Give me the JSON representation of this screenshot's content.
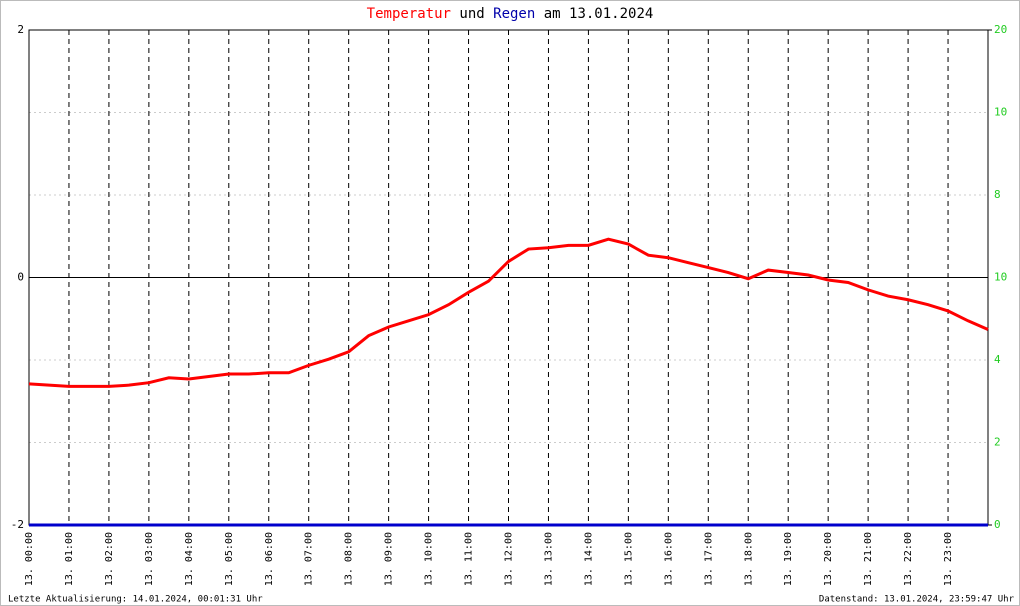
{
  "chart_data": {
    "type": "line",
    "title_middle": "und",
    "title_end": "am 13.01.2024",
    "footer_left": "Letzte Aktualisierung: 14.01.2024, 00:01:31 Uhr",
    "footer_right": "Datenstand: 13.01.2024, 23:59:47 Uhr",
    "x": [
      0,
      0.5,
      1,
      1.5,
      2,
      2.5,
      3,
      3.5,
      4,
      4.5,
      5,
      5.5,
      6,
      6.5,
      7,
      7.5,
      8,
      8.5,
      9,
      9.5,
      10,
      10.5,
      11,
      11.5,
      12,
      12.5,
      13,
      13.5,
      14,
      14.5,
      15,
      15.5,
      16,
      16.5,
      17,
      17.5,
      18,
      18.5,
      19,
      19.5,
      20,
      20.5,
      21,
      21.5,
      22,
      22.5,
      23,
      23.5,
      24
    ],
    "xlim": [
      0,
      24
    ],
    "xticks": [
      {
        "value": 0,
        "label": "13. 00:00"
      },
      {
        "value": 1,
        "label": "13. 01:00"
      },
      {
        "value": 2,
        "label": "13. 02:00"
      },
      {
        "value": 3,
        "label": "13. 03:00"
      },
      {
        "value": 4,
        "label": "13. 04:00"
      },
      {
        "value": 5,
        "label": "13. 05:00"
      },
      {
        "value": 6,
        "label": "13. 06:00"
      },
      {
        "value": 7,
        "label": "13. 07:00"
      },
      {
        "value": 8,
        "label": "13. 08:00"
      },
      {
        "value": 9,
        "label": "13. 09:00"
      },
      {
        "value": 10,
        "label": "13. 10:00"
      },
      {
        "value": 11,
        "label": "13. 11:00"
      },
      {
        "value": 12,
        "label": "13. 12:00"
      },
      {
        "value": 13,
        "label": "13. 13:00"
      },
      {
        "value": 14,
        "label": "13. 14:00"
      },
      {
        "value": 15,
        "label": "13. 15:00"
      },
      {
        "value": 16,
        "label": "13. 16:00"
      },
      {
        "value": 17,
        "label": "13. 17:00"
      },
      {
        "value": 18,
        "label": "13. 18:00"
      },
      {
        "value": 19,
        "label": "13. 19:00"
      },
      {
        "value": 20,
        "label": "13. 20:00"
      },
      {
        "value": 21,
        "label": "13. 21:00"
      },
      {
        "value": 22,
        "label": "13. 22:00"
      },
      {
        "value": 23,
        "label": "13. 23:00"
      }
    ],
    "ylim": [
      -2,
      2
    ],
    "yticks": [
      -2,
      0,
      2
    ],
    "y2lim": [
      0,
      20
    ],
    "y2ticks": [
      0,
      20
    ],
    "y2_inner_labels": [
      "2",
      "4",
      "10",
      "8",
      "10"
    ],
    "series": [
      {
        "name": "Temperatur",
        "color": "#ff0000",
        "values": [
          -0.86,
          -0.87,
          -0.88,
          -0.88,
          -0.88,
          -0.87,
          -0.85,
          -0.81,
          -0.82,
          -0.8,
          -0.78,
          -0.78,
          -0.77,
          -0.77,
          -0.71,
          -0.66,
          -0.6,
          -0.47,
          -0.4,
          -0.35,
          -0.3,
          -0.22,
          -0.12,
          -0.03,
          0.13,
          0.23,
          0.24,
          0.26,
          0.26,
          0.31,
          0.27,
          0.18,
          0.16,
          0.12,
          0.08,
          0.04,
          -0.01,
          0.06,
          0.04,
          0.02,
          -0.02,
          -0.04,
          -0.1,
          -0.15,
          -0.18,
          -0.22,
          -0.27,
          -0.35,
          -0.42
        ]
      },
      {
        "name": "Regen",
        "color": "#0000cc",
        "axis": "y2",
        "values": [
          0,
          0,
          0,
          0,
          0,
          0,
          0,
          0,
          0,
          0,
          0,
          0,
          0,
          0,
          0,
          0,
          0,
          0,
          0,
          0,
          0,
          0,
          0,
          0,
          0,
          0,
          0,
          0,
          0,
          0,
          0,
          0,
          0,
          0,
          0,
          0,
          0,
          0,
          0,
          0,
          0,
          0,
          0,
          0,
          0,
          0,
          0,
          0,
          0
        ]
      }
    ]
  }
}
